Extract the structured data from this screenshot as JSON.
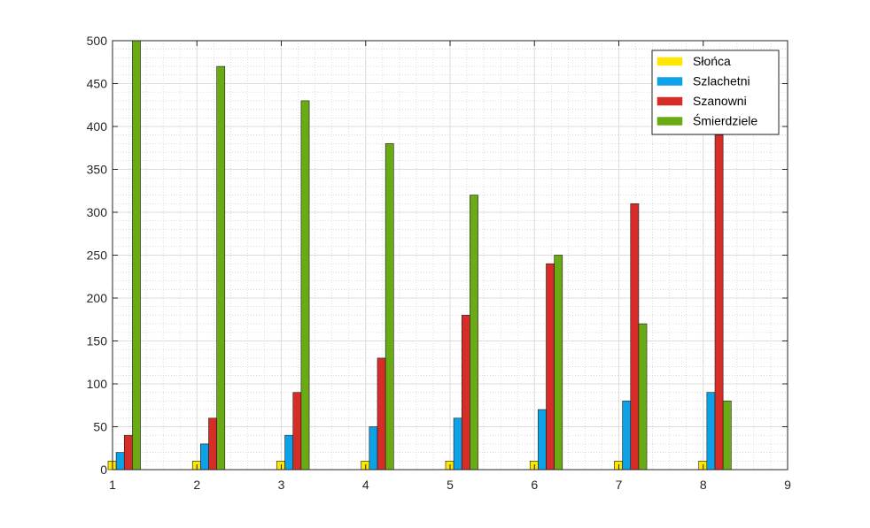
{
  "chart_data": {
    "type": "bar",
    "title": "",
    "xlabel": "",
    "ylabel": "",
    "xlim": [
      1,
      9
    ],
    "ylim": [
      0,
      500
    ],
    "x_ticks": [
      1,
      2,
      3,
      4,
      5,
      6,
      7,
      8,
      9
    ],
    "y_ticks": [
      0,
      50,
      100,
      150,
      200,
      250,
      300,
      350,
      400,
      450,
      500
    ],
    "grid": true,
    "minor_grid": true,
    "legend_position": "top-right",
    "x": [
      1,
      2,
      3,
      4,
      5,
      6,
      7,
      8
    ],
    "series": [
      {
        "name": "Słońca",
        "color": "#ffe600",
        "values": [
          10,
          10,
          10,
          10,
          10,
          10,
          10,
          10
        ]
      },
      {
        "name": "Szlachetni",
        "color": "#0da2e8",
        "values": [
          20,
          30,
          40,
          50,
          60,
          70,
          80,
          90
        ]
      },
      {
        "name": "Szanowni",
        "color": "#d62d28",
        "values": [
          40,
          60,
          90,
          130,
          180,
          240,
          310,
          390
        ]
      },
      {
        "name": "Śmierdziele",
        "color": "#6aaa14",
        "values": [
          500,
          470,
          430,
          380,
          320,
          250,
          170,
          80
        ]
      }
    ]
  }
}
